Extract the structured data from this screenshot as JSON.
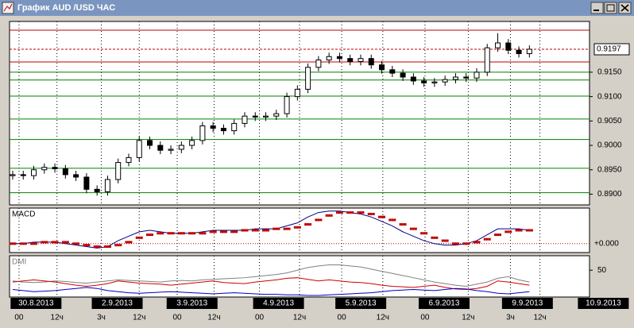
{
  "window_title": "График AUD /USD ЧАС",
  "chart_data": {
    "type": "candlestick",
    "xlim": [
      -0.3,
      54.7
    ],
    "ylim": [
      0.8878,
      0.9254
    ],
    "yticks": [
      {
        "value": 0.915,
        "label": "0.9150"
      },
      {
        "value": 0.91,
        "label": "0.9100"
      },
      {
        "value": 0.905,
        "label": "0.9050"
      },
      {
        "value": 0.9,
        "label": "0.9000"
      },
      {
        "value": 0.895,
        "label": "0.8950"
      },
      {
        "value": 0.89,
        "label": "0.8900"
      }
    ],
    "current_price": 0.9197,
    "levels": [
      {
        "value": 0.9236,
        "color": "#c00000"
      },
      {
        "value": 0.9171,
        "color": "#c00000"
      },
      {
        "value": 0.915,
        "color": "#008000"
      },
      {
        "value": 0.9134,
        "color": "#008000"
      },
      {
        "value": 0.9101,
        "color": "#008000"
      },
      {
        "value": 0.9054,
        "color": "#008000"
      },
      {
        "value": 0.9012,
        "color": "#008000"
      },
      {
        "value": 0.8953,
        "color": "#008000"
      },
      {
        "value": 0.8903,
        "color": "#008000"
      }
    ],
    "xticks": [
      {
        "value": 0.6,
        "label": "00"
      },
      {
        "value": 4.2,
        "label": "12ч"
      },
      {
        "value": 8.4,
        "label": "3ч"
      },
      {
        "value": 12.0,
        "label": "12ч"
      },
      {
        "value": 15.6,
        "label": "00"
      },
      {
        "value": 19.1,
        "label": "12ч"
      },
      {
        "value": 23.4,
        "label": "00"
      },
      {
        "value": 27.2,
        "label": "12ч"
      },
      {
        "value": 31.2,
        "label": "00"
      },
      {
        "value": 35.1,
        "label": "12ч"
      },
      {
        "value": 39.1,
        "label": "00"
      },
      {
        "value": 43.2,
        "label": "12ч"
      },
      {
        "value": 47.2,
        "label": "3ч"
      },
      {
        "value": 50.0,
        "label": "12ч"
      }
    ],
    "date_ticks": [
      {
        "value": -0.2,
        "label": "30.8.2013"
      },
      {
        "value": 7.5,
        "label": "2.9.2013"
      },
      {
        "value": 14.6,
        "label": "3.9.2013"
      },
      {
        "value": 22.8,
        "label": "4.9.2013"
      },
      {
        "value": 30.6,
        "label": "5.9.2013"
      },
      {
        "value": 38.5,
        "label": "6.9.2013"
      },
      {
        "value": 46.4,
        "label": "9.9.2013"
      },
      {
        "value": 53.6,
        "label": "10.9.2013"
      }
    ],
    "open": [
      0.8938,
      0.894,
      0.8938,
      0.895,
      0.8955,
      0.8952,
      0.894,
      0.8935,
      0.891,
      0.8905,
      0.893,
      0.8965,
      0.8975,
      0.901,
      0.9,
      0.899,
      0.8992,
      0.9,
      0.901,
      0.904,
      0.9035,
      0.903,
      0.9045,
      0.906,
      0.9058,
      0.906,
      0.9065,
      0.91,
      0.9115,
      0.916,
      0.9175,
      0.9182,
      0.9178,
      0.9172,
      0.9178,
      0.9165,
      0.9155,
      0.9148,
      0.914,
      0.9132,
      0.9128,
      0.913,
      0.9135,
      0.914,
      0.9138,
      0.915,
      0.92,
      0.921,
      0.9195,
      0.9188
    ],
    "high": [
      0.8948,
      0.8948,
      0.8958,
      0.8963,
      0.8963,
      0.896,
      0.8948,
      0.8943,
      0.8918,
      0.8938,
      0.8973,
      0.8983,
      0.9018,
      0.9018,
      0.9008,
      0.9,
      0.9008,
      0.9018,
      0.9048,
      0.9048,
      0.9043,
      0.9053,
      0.9068,
      0.9068,
      0.9068,
      0.9073,
      0.9108,
      0.9123,
      0.9168,
      0.9183,
      0.919,
      0.919,
      0.9186,
      0.9186,
      0.9186,
      0.9173,
      0.9163,
      0.9156,
      0.9148,
      0.914,
      0.9138,
      0.9143,
      0.9148,
      0.9148,
      0.9158,
      0.9208,
      0.923,
      0.9218,
      0.9203,
      0.9205
    ],
    "low": [
      0.893,
      0.893,
      0.893,
      0.8942,
      0.8944,
      0.8932,
      0.8927,
      0.8902,
      0.8897,
      0.8897,
      0.8922,
      0.8957,
      0.8967,
      0.8992,
      0.8982,
      0.8982,
      0.8984,
      0.8992,
      0.9002,
      0.9027,
      0.9022,
      0.9022,
      0.9037,
      0.905,
      0.905,
      0.9052,
      0.9057,
      0.9092,
      0.9107,
      0.9152,
      0.9167,
      0.917,
      0.9164,
      0.9164,
      0.9157,
      0.9147,
      0.914,
      0.9132,
      0.9124,
      0.912,
      0.912,
      0.9122,
      0.9127,
      0.913,
      0.913,
      0.9142,
      0.9192,
      0.9187,
      0.918,
      0.918
    ],
    "close": [
      0.894,
      0.8938,
      0.895,
      0.8955,
      0.8952,
      0.894,
      0.8935,
      0.891,
      0.8905,
      0.893,
      0.8965,
      0.8975,
      0.901,
      0.9,
      0.899,
      0.8992,
      0.9,
      0.901,
      0.904,
      0.9035,
      0.903,
      0.9045,
      0.906,
      0.9058,
      0.906,
      0.9065,
      0.91,
      0.9115,
      0.916,
      0.9175,
      0.9182,
      0.9178,
      0.9172,
      0.9178,
      0.9165,
      0.9155,
      0.9148,
      0.914,
      0.9132,
      0.9128,
      0.913,
      0.9135,
      0.914,
      0.9138,
      0.915,
      0.92,
      0.921,
      0.9195,
      0.9188,
      0.9197
    ],
    "macd": {
      "title": "MACD",
      "ylim": [
        -0.0006,
        0.0024
      ],
      "yticks": [
        {
          "value": 0,
          "label": "+0.000"
        }
      ],
      "series": [
        {
          "color": "#000080",
          "style": "line",
          "values": [
            0,
            0,
            0.0001,
            0.0001,
            0.0001,
            0,
            -0.0001,
            -0.0002,
            -0.0003,
            -0.0002,
            0.0002,
            0.0005,
            0.0008,
            0.0009,
            0.0008,
            0.0007,
            0.0007,
            0.0007,
            0.0008,
            0.0009,
            0.0009,
            0.0009,
            0.0009,
            0.001,
            0.001,
            0.001,
            0.0012,
            0.0014,
            0.0018,
            0.0021,
            0.0022,
            0.0022,
            0.0021,
            0.002,
            0.0018,
            0.0015,
            0.0012,
            0.0008,
            0.0005,
            0.0002,
            0,
            -0.0001,
            -0.0001,
            0,
            0.0002,
            0.0006,
            0.001,
            0.001,
            0.001,
            0.0009
          ]
        },
        {
          "color": "#c00000",
          "style": "dots",
          "values": [
            0,
            0,
            0,
            0.0001,
            0.0001,
            0.0001,
            0,
            -0.0001,
            -0.0002,
            -0.0002,
            -0.0001,
            0.0001,
            0.0004,
            0.0006,
            0.0007,
            0.0007,
            0.0007,
            0.0007,
            0.0007,
            0.0008,
            0.0008,
            0.0008,
            0.0009,
            0.0009,
            0.0009,
            0.001,
            0.001,
            0.0011,
            0.0013,
            0.0016,
            0.0019,
            0.0021,
            0.0021,
            0.0021,
            0.002,
            0.0018,
            0.0016,
            0.0013,
            0.001,
            0.0007,
            0.0004,
            0.0002,
            0,
            0,
            0.0001,
            0.0003,
            0.0006,
            0.0008,
            0.0009,
            0.0009
          ]
        }
      ]
    },
    "dmi": {
      "title": "DMI",
      "ylim": [
        0,
        77
      ],
      "yticks": [
        50
      ],
      "series": [
        {
          "color": "#808080",
          "values": [
            30,
            28,
            27,
            28,
            30,
            29,
            27,
            26,
            28,
            30,
            32,
            31,
            30,
            29,
            28,
            30,
            31,
            30,
            32,
            33,
            34,
            35,
            36,
            38,
            40,
            42,
            45,
            50,
            55,
            58,
            60,
            60,
            58,
            56,
            52,
            48,
            44,
            40,
            36,
            32,
            28,
            25,
            22,
            20,
            24,
            28,
            35,
            38,
            32,
            28
          ]
        },
        {
          "color": "#d00000",
          "values": [
            28,
            30,
            32,
            30,
            28,
            25,
            22,
            20,
            22,
            25,
            30,
            28,
            26,
            25,
            24,
            22,
            24,
            26,
            28,
            30,
            27,
            26,
            25,
            28,
            30,
            32,
            35,
            36,
            33,
            30,
            32,
            30,
            28,
            27,
            25,
            22,
            20,
            19,
            18,
            20,
            22,
            18,
            15,
            14,
            16,
            20,
            30,
            28,
            25,
            22
          ]
        },
        {
          "color": "#0000c0",
          "values": [
            14,
            12,
            10,
            11,
            12,
            14,
            16,
            18,
            16,
            12,
            10,
            8,
            7,
            8,
            9,
            10,
            9,
            8,
            7,
            6,
            7,
            8,
            7,
            6,
            5,
            5,
            4,
            4,
            3,
            3,
            4,
            5,
            6,
            7,
            8,
            10,
            12,
            13,
            14,
            13,
            12,
            14,
            16,
            15,
            12,
            10,
            7,
            6,
            8,
            10
          ]
        }
      ]
    }
  }
}
